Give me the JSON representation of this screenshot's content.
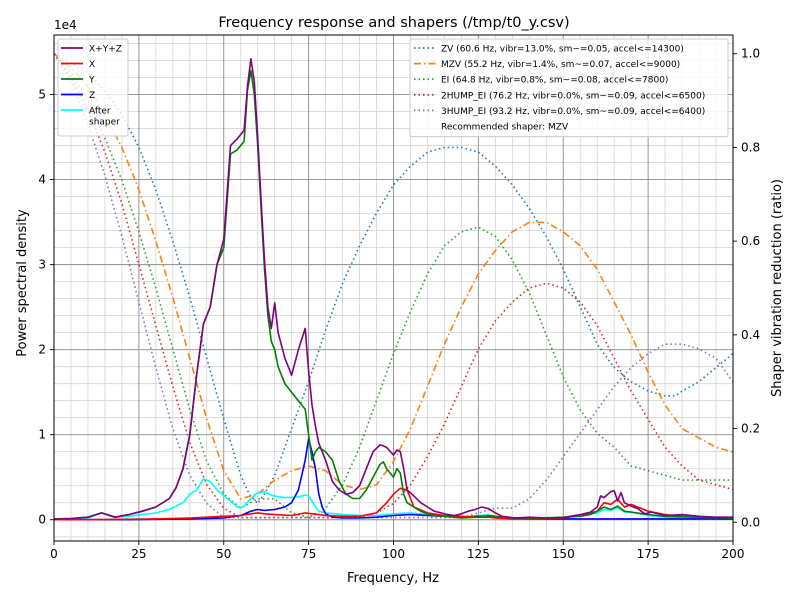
{
  "chart_data": {
    "type": "line",
    "title": "Frequency response and shapers (/tmp/t0_y.csv)",
    "xlabel": "Frequency, Hz",
    "ylabel": "Power spectral density",
    "y2label": "Shaper vibration reduction (ratio)",
    "y_offset_label": "1e4",
    "xlim": [
      0,
      200
    ],
    "ylim": [
      -2500,
      57000
    ],
    "y2lim": [
      -0.04,
      1.04
    ],
    "x_ticks": [
      0,
      25,
      50,
      75,
      100,
      125,
      150,
      175,
      200
    ],
    "x_tick_labels": [
      "0",
      "25",
      "50",
      "75",
      "100",
      "125",
      "150",
      "175",
      "200"
    ],
    "x_minor_step": 5,
    "y_ticks": [
      0,
      10000,
      20000,
      30000,
      40000,
      50000
    ],
    "y_tick_labels": [
      "0",
      "1",
      "2",
      "3",
      "4",
      "5"
    ],
    "y_minor_step": 2000,
    "y2_ticks": [
      0,
      0.2,
      0.4,
      0.6,
      0.8,
      1.0
    ],
    "y2_tick_labels": [
      "0.0",
      "0.2",
      "0.4",
      "0.6",
      "0.8",
      "1.0"
    ],
    "grid": true,
    "legend_left_position": "top-left",
    "legend_right_position": "top-right",
    "psd_series": [
      {
        "name": "X+Y+Z",
        "color": "#800080",
        "x": [
          0,
          5,
          10,
          14,
          18,
          22,
          26,
          30,
          34,
          36,
          38,
          40,
          42,
          44,
          46,
          48,
          50,
          52,
          54,
          56,
          57,
          58,
          59,
          60,
          61,
          62,
          63,
          64,
          65,
          66,
          68,
          70,
          72,
          74,
          75,
          76,
          77,
          78,
          80,
          82,
          84,
          86,
          88,
          90,
          92,
          94,
          96,
          97,
          98,
          100,
          101,
          102,
          103,
          104,
          106,
          108,
          110,
          112,
          114,
          116,
          118,
          120,
          122,
          124,
          126,
          128,
          130,
          132,
          134,
          136,
          140,
          145,
          150,
          155,
          158,
          160,
          161,
          162,
          164,
          165,
          166,
          167,
          168,
          170,
          172,
          174,
          176,
          180,
          185,
          190,
          195,
          200
        ],
        "y": [
          100,
          150,
          300,
          800,
          300,
          600,
          1000,
          1500,
          2500,
          3800,
          6000,
          10000,
          17000,
          23000,
          25000,
          30000,
          33000,
          44000,
          44800,
          45800,
          51000,
          54200,
          51500,
          45000,
          37500,
          30500,
          25000,
          22500,
          25500,
          22000,
          19000,
          17000,
          20000,
          22500,
          17500,
          13500,
          11000,
          9000,
          7000,
          4500,
          3500,
          3000,
          3200,
          4000,
          6000,
          8000,
          8800,
          8700,
          8500,
          7600,
          8200,
          8000,
          6000,
          3500,
          2800,
          2000,
          1500,
          1000,
          800,
          600,
          500,
          700,
          1000,
          1200,
          1500,
          1300,
          800,
          400,
          300,
          200,
          300,
          200,
          250,
          600,
          900,
          1500,
          2800,
          2600,
          3300,
          3400,
          2200,
          3200,
          2000,
          1600,
          1300,
          700,
          900,
          500,
          600,
          400,
          300,
          300
        ]
      },
      {
        "name": "X",
        "color": "#ff0000",
        "x": [
          0,
          10,
          20,
          30,
          40,
          45,
          50,
          55,
          58,
          60,
          62,
          65,
          70,
          74,
          76,
          78,
          80,
          85,
          90,
          95,
          98,
          100,
          102,
          104,
          106,
          110,
          115,
          120,
          125,
          128,
          130,
          135,
          140,
          150,
          155,
          160,
          162,
          164,
          166,
          168,
          170,
          175,
          180,
          185,
          190,
          200
        ],
        "y": [
          0,
          0,
          50,
          100,
          200,
          300,
          400,
          500,
          700,
          800,
          700,
          600,
          500,
          800,
          700,
          600,
          500,
          400,
          400,
          800,
          2000,
          3000,
          3700,
          3500,
          1500,
          800,
          500,
          400,
          300,
          300,
          200,
          100,
          100,
          200,
          500,
          1000,
          2000,
          1800,
          2400,
          1500,
          1800,
          1000,
          600,
          400,
          300,
          200
        ]
      },
      {
        "name": "Y",
        "color": "#008000",
        "x": [
          0,
          5,
          10,
          14,
          18,
          22,
          26,
          30,
          34,
          36,
          38,
          40,
          42,
          44,
          46,
          48,
          50,
          52,
          54,
          56,
          57,
          58,
          59,
          60,
          61,
          62,
          63,
          64,
          65,
          66,
          68,
          70,
          72,
          74,
          75,
          76,
          77,
          78,
          80,
          82,
          84,
          86,
          88,
          90,
          92,
          94,
          96,
          97,
          98,
          100,
          101,
          102,
          103,
          104,
          106,
          108,
          110,
          112,
          115,
          120,
          125,
          128,
          130,
          135,
          140,
          145,
          150,
          155,
          158,
          160,
          162,
          164,
          166,
          168,
          170,
          175,
          180,
          190,
          200
        ],
        "y": [
          100,
          150,
          300,
          800,
          300,
          600,
          1000,
          1500,
          2500,
          3800,
          6000,
          10000,
          17000,
          23000,
          25000,
          30000,
          32000,
          43000,
          43500,
          44500,
          50500,
          52800,
          50000,
          44000,
          36500,
          29500,
          24000,
          21000,
          20000,
          18000,
          16000,
          15000,
          14000,
          13000,
          10000,
          7000,
          8000,
          8500,
          8000,
          7000,
          4500,
          3000,
          2500,
          2500,
          3500,
          5000,
          6500,
          6800,
          6000,
          5000,
          6000,
          5500,
          3000,
          2000,
          1500,
          1000,
          700,
          500,
          400,
          200,
          300,
          500,
          400,
          200,
          200,
          200,
          300,
          400,
          600,
          1000,
          1500,
          1200,
          1600,
          1000,
          900,
          600,
          400,
          300,
          200
        ]
      },
      {
        "name": "Z",
        "color": "#0000ff",
        "x": [
          0,
          20,
          40,
          50,
          55,
          58,
          60,
          62,
          65,
          68,
          70,
          72,
          74,
          75,
          76,
          77,
          78,
          79,
          80,
          82,
          85,
          90,
          95,
          100,
          105,
          110,
          115,
          120,
          125,
          128,
          130,
          135,
          140,
          150,
          160,
          170,
          180,
          190,
          200
        ],
        "y": [
          0,
          0,
          100,
          200,
          500,
          1000,
          1200,
          1100,
          1200,
          1500,
          2000,
          3500,
          7000,
          9500,
          8000,
          6000,
          3000,
          1500,
          700,
          300,
          200,
          200,
          300,
          500,
          600,
          500,
          400,
          300,
          400,
          400,
          300,
          200,
          100,
          100,
          100,
          100,
          100,
          100,
          100
        ]
      },
      {
        "name": "After\nshaper",
        "color": "#00ffff",
        "x": [
          0,
          5,
          10,
          14,
          18,
          22,
          26,
          30,
          34,
          38,
          40,
          42,
          44,
          46,
          48,
          50,
          52,
          54,
          55,
          56,
          58,
          60,
          62,
          64,
          66,
          68,
          70,
          72,
          74,
          75,
          76,
          77,
          78,
          80,
          85,
          90,
          95,
          100,
          105,
          110,
          115,
          120,
          125,
          128,
          130,
          135,
          140,
          150,
          155,
          160,
          162,
          164,
          166,
          168,
          170,
          175,
          180,
          190,
          200
        ],
        "y": [
          100,
          100,
          200,
          800,
          300,
          400,
          600,
          800,
          1200,
          2000,
          3000,
          3500,
          4800,
          4500,
          3500,
          2800,
          2200,
          1500,
          1400,
          1600,
          2500,
          3200,
          3300,
          2900,
          2700,
          2600,
          2600,
          2700,
          2900,
          2800,
          2200,
          1500,
          1000,
          800,
          600,
          500,
          500,
          700,
          800,
          600,
          400,
          300,
          500,
          600,
          300,
          200,
          200,
          300,
          500,
          800,
          1200,
          1100,
          1400,
          900,
          900,
          500,
          300,
          200,
          200
        ]
      }
    ],
    "shaper_series": [
      {
        "name": "ZV (60.6 Hz, vibr=13.0%, sm~=0.05, accel<=14300)",
        "color": "#1f77b4",
        "style": "dotted",
        "x": [
          0,
          5,
          10,
          15,
          20,
          25,
          30,
          35,
          40,
          45,
          50,
          55,
          57.5,
          60,
          62,
          65,
          70,
          75,
          80,
          85,
          90,
          95,
          100,
          105,
          110,
          115,
          118,
          120,
          125,
          130,
          135,
          140,
          145,
          150,
          155,
          160,
          165,
          170,
          175,
          180,
          183,
          185,
          190,
          195,
          200
        ],
        "y": [
          1.0,
          0.98,
          0.96,
          0.92,
          0.87,
          0.8,
          0.71,
          0.6,
          0.48,
          0.35,
          0.22,
          0.1,
          0.06,
          0.04,
          0.06,
          0.1,
          0.2,
          0.3,
          0.41,
          0.51,
          0.59,
          0.66,
          0.72,
          0.76,
          0.79,
          0.8,
          0.8,
          0.8,
          0.79,
          0.76,
          0.72,
          0.67,
          0.61,
          0.54,
          0.46,
          0.38,
          0.33,
          0.3,
          0.28,
          0.27,
          0.27,
          0.28,
          0.3,
          0.33,
          0.36
        ]
      },
      {
        "name": "MZV (55.2 Hz, vibr=1.4%, sm~=0.07, accel<=9000)",
        "color": "#ff7f0e",
        "style": "dashdot",
        "x": [
          0,
          5,
          10,
          15,
          20,
          25,
          30,
          35,
          40,
          45,
          50,
          55,
          60,
          65,
          70,
          75,
          80,
          85,
          90,
          95,
          100,
          105,
          110,
          115,
          120,
          125,
          130,
          135,
          140,
          145,
          150,
          155,
          160,
          165,
          170,
          175,
          180,
          185,
          190,
          195,
          200
        ],
        "y": [
          1.0,
          0.97,
          0.93,
          0.87,
          0.8,
          0.71,
          0.6,
          0.48,
          0.35,
          0.22,
          0.11,
          0.05,
          0.06,
          0.09,
          0.11,
          0.12,
          0.11,
          0.08,
          0.07,
          0.08,
          0.13,
          0.2,
          0.29,
          0.38,
          0.46,
          0.53,
          0.58,
          0.62,
          0.64,
          0.64,
          0.62,
          0.59,
          0.54,
          0.47,
          0.4,
          0.32,
          0.25,
          0.2,
          0.18,
          0.16,
          0.15
        ]
      },
      {
        "name": "EI (64.8 Hz, vibr=0.8%, sm~=0.08, accel<=7800)",
        "color": "#2ca02c",
        "style": "dotted",
        "x": [
          0,
          5,
          10,
          15,
          20,
          25,
          30,
          35,
          40,
          45,
          50,
          55,
          60,
          65,
          70,
          75,
          80,
          85,
          90,
          95,
          100,
          105,
          110,
          115,
          120,
          125,
          130,
          135,
          140,
          145,
          150,
          155,
          160,
          165,
          170,
          175,
          180,
          185,
          190,
          195,
          200
        ],
        "y": [
          1.0,
          0.96,
          0.9,
          0.82,
          0.73,
          0.62,
          0.5,
          0.37,
          0.24,
          0.13,
          0.06,
          0.03,
          0.05,
          0.05,
          0.02,
          0.01,
          0.03,
          0.08,
          0.16,
          0.26,
          0.36,
          0.45,
          0.53,
          0.59,
          0.62,
          0.63,
          0.61,
          0.56,
          0.49,
          0.4,
          0.31,
          0.24,
          0.19,
          0.16,
          0.12,
          0.11,
          0.1,
          0.09,
          0.09,
          0.09,
          0.09
        ]
      },
      {
        "name": "2HUMP_EI (76.2 Hz, vibr=0.0%, sm~=0.09, accel<=6500)",
        "color": "#d62728",
        "style": "dotted",
        "x": [
          0,
          5,
          10,
          15,
          20,
          25,
          30,
          35,
          40,
          45,
          50,
          55,
          60,
          65,
          70,
          75,
          80,
          85,
          90,
          95,
          100,
          105,
          110,
          115,
          120,
          125,
          130,
          135,
          140,
          145,
          150,
          155,
          160,
          165,
          170,
          175,
          180,
          185,
          190,
          195,
          200
        ],
        "y": [
          1.0,
          0.95,
          0.88,
          0.79,
          0.68,
          0.55,
          0.42,
          0.29,
          0.17,
          0.08,
          0.03,
          0.01,
          0.01,
          0.01,
          0.01,
          0.01,
          0.01,
          0.01,
          0.01,
          0.02,
          0.04,
          0.08,
          0.14,
          0.21,
          0.29,
          0.37,
          0.43,
          0.47,
          0.5,
          0.51,
          0.5,
          0.47,
          0.42,
          0.35,
          0.28,
          0.22,
          0.16,
          0.12,
          0.09,
          0.08,
          0.07
        ]
      },
      {
        "name": "3HUMP_EI (93.2 Hz, vibr=0.0%, sm~=0.09, accel<=6400)",
        "color": "#9467bd",
        "style": "dotted",
        "x": [
          0,
          5,
          10,
          15,
          20,
          25,
          30,
          35,
          40,
          45,
          50,
          55,
          60,
          65,
          70,
          75,
          80,
          85,
          90,
          95,
          100,
          105,
          110,
          115,
          120,
          125,
          130,
          135,
          140,
          145,
          150,
          155,
          160,
          165,
          170,
          175,
          180,
          185,
          190,
          195,
          200
        ],
        "y": [
          1.0,
          0.94,
          0.85,
          0.74,
          0.61,
          0.47,
          0.33,
          0.2,
          0.1,
          0.04,
          0.01,
          0.01,
          0.01,
          0.01,
          0.01,
          0.01,
          0.01,
          0.01,
          0.01,
          0.01,
          0.01,
          0.01,
          0.01,
          0.01,
          0.01,
          0.02,
          0.03,
          0.03,
          0.05,
          0.09,
          0.14,
          0.19,
          0.24,
          0.29,
          0.33,
          0.36,
          0.38,
          0.38,
          0.37,
          0.35,
          0.3
        ]
      }
    ],
    "recommended_text": "Recommended shaper: MZV"
  }
}
